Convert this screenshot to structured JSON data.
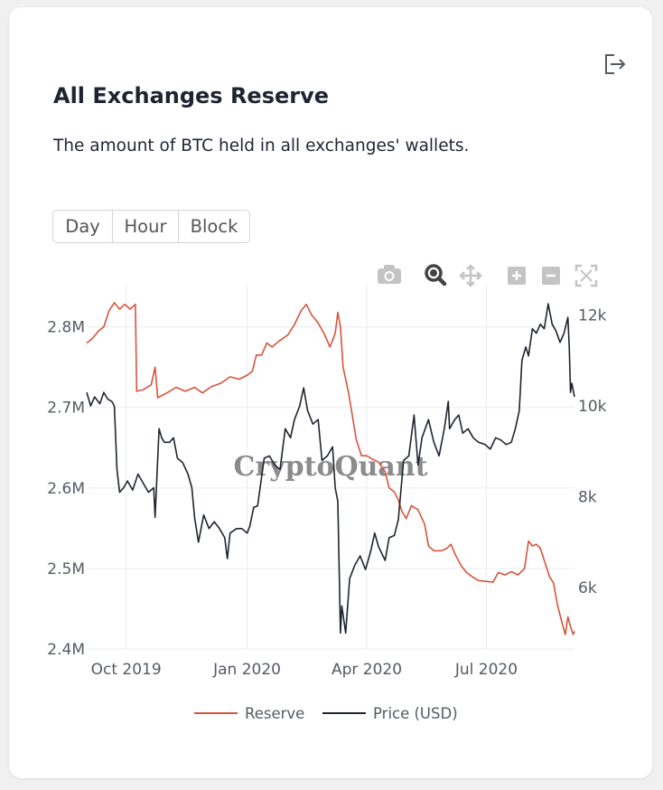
{
  "card": {
    "title": "All Exchanges Reserve",
    "subtitle": "The amount of BTC held in all exchanges' wallets.",
    "export_icon": "export-icon"
  },
  "tabs": [
    {
      "label": "Day",
      "active": true
    },
    {
      "label": "Hour",
      "active": false
    },
    {
      "label": "Block",
      "active": false
    }
  ],
  "modebar": [
    "camera-icon",
    "zoom-icon",
    "pan-icon",
    "zoom-in-icon",
    "zoom-out-icon",
    "autoscale-icon"
  ],
  "chart_data": {
    "type": "line",
    "watermark": "CryptoQuant",
    "x_ticks": [
      {
        "date": "2019-10-01",
        "label": "Oct 2019"
      },
      {
        "date": "2020-01-01",
        "label": "Jan 2020"
      },
      {
        "date": "2020-04-01",
        "label": "Apr 2020"
      },
      {
        "date": "2020-07-01",
        "label": "Jul 2020"
      }
    ],
    "xlim": [
      "2019-09-01",
      "2020-09-06"
    ],
    "y_left": {
      "ylim": [
        2400000,
        2840000
      ],
      "ticks": [
        {
          "v": 2400000,
          "label": "2.4M"
        },
        {
          "v": 2500000,
          "label": "2.5M"
        },
        {
          "v": 2600000,
          "label": "2.6M"
        },
        {
          "v": 2700000,
          "label": "2.7M"
        },
        {
          "v": 2800000,
          "label": "2.8M"
        }
      ]
    },
    "y_right": {
      "ylim": [
        4650,
        12450
      ],
      "ticks": [
        {
          "v": 6000,
          "label": "6k"
        },
        {
          "v": 8000,
          "label": "8k"
        },
        {
          "v": 10000,
          "label": "10k"
        },
        {
          "v": 12000,
          "label": "12k"
        }
      ]
    },
    "grid": true,
    "legend_position": "bottom-center",
    "series": [
      {
        "name": "Reserve",
        "axis": "left",
        "color": "#d9533e",
        "points": [
          [
            "2019-09-01",
            2780000
          ],
          [
            "2019-09-05",
            2785000
          ],
          [
            "2019-09-10",
            2795000
          ],
          [
            "2019-09-14",
            2800000
          ],
          [
            "2019-09-18",
            2820000
          ],
          [
            "2019-09-22",
            2830000
          ],
          [
            "2019-09-26",
            2822000
          ],
          [
            "2019-09-30",
            2828000
          ],
          [
            "2019-10-04",
            2822000
          ],
          [
            "2019-10-08",
            2828000
          ],
          [
            "2019-10-09",
            2720000
          ],
          [
            "2019-10-14",
            2722000
          ],
          [
            "2019-10-20",
            2728000
          ],
          [
            "2019-10-23",
            2750000
          ],
          [
            "2019-10-25",
            2712000
          ],
          [
            "2019-11-01",
            2718000
          ],
          [
            "2019-11-08",
            2725000
          ],
          [
            "2019-11-15",
            2720000
          ],
          [
            "2019-11-22",
            2725000
          ],
          [
            "2019-11-28",
            2718000
          ],
          [
            "2019-12-05",
            2726000
          ],
          [
            "2019-12-12",
            2730000
          ],
          [
            "2019-12-19",
            2738000
          ],
          [
            "2019-12-26",
            2735000
          ],
          [
            "2020-01-01",
            2740000
          ],
          [
            "2020-01-05",
            2745000
          ],
          [
            "2020-01-08",
            2765000
          ],
          [
            "2020-01-12",
            2765000
          ],
          [
            "2020-01-16",
            2780000
          ],
          [
            "2020-01-20",
            2775000
          ],
          [
            "2020-01-25",
            2782000
          ],
          [
            "2020-02-01",
            2790000
          ],
          [
            "2020-02-06",
            2803000
          ],
          [
            "2020-02-11",
            2820000
          ],
          [
            "2020-02-15",
            2828000
          ],
          [
            "2020-02-19",
            2815000
          ],
          [
            "2020-02-24",
            2805000
          ],
          [
            "2020-02-29",
            2790000
          ],
          [
            "2020-03-04",
            2775000
          ],
          [
            "2020-03-08",
            2792000
          ],
          [
            "2020-03-10",
            2818000
          ],
          [
            "2020-03-12",
            2800000
          ],
          [
            "2020-03-14",
            2750000
          ],
          [
            "2020-03-18",
            2720000
          ],
          [
            "2020-03-20",
            2700000
          ],
          [
            "2020-03-24",
            2660000
          ],
          [
            "2020-03-28",
            2640000
          ],
          [
            "2020-04-01",
            2640000
          ],
          [
            "2020-04-05",
            2636000
          ],
          [
            "2020-04-10",
            2632000
          ],
          [
            "2020-04-15",
            2620000
          ],
          [
            "2020-04-18",
            2600000
          ],
          [
            "2020-04-22",
            2595000
          ],
          [
            "2020-04-25",
            2585000
          ],
          [
            "2020-04-28",
            2570000
          ],
          [
            "2020-05-01",
            2562000
          ],
          [
            "2020-05-05",
            2578000
          ],
          [
            "2020-05-10",
            2573000
          ],
          [
            "2020-05-15",
            2555000
          ],
          [
            "2020-05-18",
            2528000
          ],
          [
            "2020-05-22",
            2522000
          ],
          [
            "2020-05-28",
            2522000
          ],
          [
            "2020-06-01",
            2525000
          ],
          [
            "2020-06-04",
            2530000
          ],
          [
            "2020-06-08",
            2515000
          ],
          [
            "2020-06-12",
            2503000
          ],
          [
            "2020-06-16",
            2495000
          ],
          [
            "2020-06-20",
            2490000
          ],
          [
            "2020-06-25",
            2485000
          ],
          [
            "2020-07-01",
            2484000
          ],
          [
            "2020-07-06",
            2483000
          ],
          [
            "2020-07-10",
            2495000
          ],
          [
            "2020-07-15",
            2492000
          ],
          [
            "2020-07-20",
            2496000
          ],
          [
            "2020-07-25",
            2492000
          ],
          [
            "2020-07-30",
            2500000
          ],
          [
            "2020-08-02",
            2534000
          ],
          [
            "2020-08-05",
            2528000
          ],
          [
            "2020-08-08",
            2530000
          ],
          [
            "2020-08-11",
            2525000
          ],
          [
            "2020-08-14",
            2510000
          ],
          [
            "2020-08-18",
            2490000
          ],
          [
            "2020-08-21",
            2482000
          ],
          [
            "2020-08-24",
            2455000
          ],
          [
            "2020-08-27",
            2436000
          ],
          [
            "2020-08-30",
            2418000
          ],
          [
            "2020-09-01",
            2440000
          ],
          [
            "2020-09-03",
            2428000
          ],
          [
            "2020-09-05",
            2418000
          ],
          [
            "2020-09-06",
            2422000
          ]
        ]
      },
      {
        "name": "Price (USD)",
        "axis": "right",
        "color": "#1f2430",
        "points": [
          [
            "2019-09-01",
            10300
          ],
          [
            "2019-09-04",
            10000
          ],
          [
            "2019-09-07",
            10200
          ],
          [
            "2019-09-11",
            10050
          ],
          [
            "2019-09-14",
            10300
          ],
          [
            "2019-09-17",
            10150
          ],
          [
            "2019-09-20",
            10100
          ],
          [
            "2019-09-22",
            10000
          ],
          [
            "2019-09-24",
            8600
          ],
          [
            "2019-09-26",
            8100
          ],
          [
            "2019-09-29",
            8200
          ],
          [
            "2019-10-02",
            8350
          ],
          [
            "2019-10-06",
            8150
          ],
          [
            "2019-10-10",
            8500
          ],
          [
            "2019-10-14",
            8300
          ],
          [
            "2019-10-18",
            8100
          ],
          [
            "2019-10-22",
            8200
          ],
          [
            "2019-10-23",
            7550
          ],
          [
            "2019-10-26",
            9500
          ],
          [
            "2019-10-28",
            9300
          ],
          [
            "2019-10-30",
            9200
          ],
          [
            "2019-11-03",
            9200
          ],
          [
            "2019-11-06",
            9300
          ],
          [
            "2019-11-09",
            8850
          ],
          [
            "2019-11-13",
            8750
          ],
          [
            "2019-11-17",
            8500
          ],
          [
            "2019-11-20",
            8200
          ],
          [
            "2019-11-22",
            7550
          ],
          [
            "2019-11-25",
            7000
          ],
          [
            "2019-11-29",
            7600
          ],
          [
            "2019-12-03",
            7300
          ],
          [
            "2019-12-07",
            7450
          ],
          [
            "2019-12-11",
            7300
          ],
          [
            "2019-12-15",
            7100
          ],
          [
            "2019-12-17",
            6640
          ],
          [
            "2019-12-19",
            7200
          ],
          [
            "2019-12-24",
            7300
          ],
          [
            "2019-12-28",
            7300
          ],
          [
            "2020-01-01",
            7200
          ],
          [
            "2020-01-03",
            7350
          ],
          [
            "2020-01-06",
            7770
          ],
          [
            "2020-01-09",
            7800
          ],
          [
            "2020-01-14",
            8850
          ],
          [
            "2020-01-18",
            8900
          ],
          [
            "2020-01-22",
            8700
          ],
          [
            "2020-01-26",
            8600
          ],
          [
            "2020-01-30",
            9500
          ],
          [
            "2020-02-03",
            9300
          ],
          [
            "2020-02-06",
            9700
          ],
          [
            "2020-02-10",
            10000
          ],
          [
            "2020-02-13",
            10400
          ],
          [
            "2020-02-16",
            9900
          ],
          [
            "2020-02-20",
            9600
          ],
          [
            "2020-02-24",
            9700
          ],
          [
            "2020-02-27",
            8800
          ],
          [
            "2020-03-02",
            8900
          ],
          [
            "2020-03-06",
            9100
          ],
          [
            "2020-03-08",
            8200
          ],
          [
            "2020-03-10",
            7900
          ],
          [
            "2020-03-12",
            5000
          ],
          [
            "2020-03-13",
            5600
          ],
          [
            "2020-03-16",
            5000
          ],
          [
            "2020-03-19",
            6200
          ],
          [
            "2020-03-23",
            6500
          ],
          [
            "2020-03-27",
            6700
          ],
          [
            "2020-03-31",
            6400
          ],
          [
            "2020-04-04",
            6800
          ],
          [
            "2020-04-07",
            7200
          ],
          [
            "2020-04-10",
            6900
          ],
          [
            "2020-04-15",
            6600
          ],
          [
            "2020-04-18",
            7100
          ],
          [
            "2020-04-22",
            7150
          ],
          [
            "2020-04-25",
            7500
          ],
          [
            "2020-04-29",
            8800
          ],
          [
            "2020-05-03",
            8900
          ],
          [
            "2020-05-07",
            9800
          ],
          [
            "2020-05-10",
            8700
          ],
          [
            "2020-05-13",
            9300
          ],
          [
            "2020-05-18",
            9700
          ],
          [
            "2020-05-22",
            9200
          ],
          [
            "2020-05-26",
            8900
          ],
          [
            "2020-05-30",
            9500
          ],
          [
            "2020-06-02",
            10100
          ],
          [
            "2020-06-03",
            9500
          ],
          [
            "2020-06-07",
            9700
          ],
          [
            "2020-06-10",
            9800
          ],
          [
            "2020-06-13",
            9400
          ],
          [
            "2020-06-17",
            9500
          ],
          [
            "2020-06-21",
            9300
          ],
          [
            "2020-06-25",
            9200
          ],
          [
            "2020-06-30",
            9150
          ],
          [
            "2020-07-04",
            9050
          ],
          [
            "2020-07-08",
            9300
          ],
          [
            "2020-07-12",
            9250
          ],
          [
            "2020-07-16",
            9150
          ],
          [
            "2020-07-20",
            9200
          ],
          [
            "2020-07-23",
            9500
          ],
          [
            "2020-07-26",
            9900
          ],
          [
            "2020-07-28",
            11000
          ],
          [
            "2020-07-31",
            11300
          ],
          [
            "2020-08-02",
            11100
          ],
          [
            "2020-08-05",
            11700
          ],
          [
            "2020-08-08",
            11600
          ],
          [
            "2020-08-11",
            11800
          ],
          [
            "2020-08-14",
            11700
          ],
          [
            "2020-08-17",
            12250
          ],
          [
            "2020-08-20",
            11800
          ],
          [
            "2020-08-23",
            11650
          ],
          [
            "2020-08-26",
            11400
          ],
          [
            "2020-08-29",
            11600
          ],
          [
            "2020-09-01",
            11950
          ],
          [
            "2020-09-02",
            11300
          ],
          [
            "2020-09-03",
            10300
          ],
          [
            "2020-09-04",
            10500
          ],
          [
            "2020-09-06",
            10200
          ]
        ]
      }
    ]
  }
}
